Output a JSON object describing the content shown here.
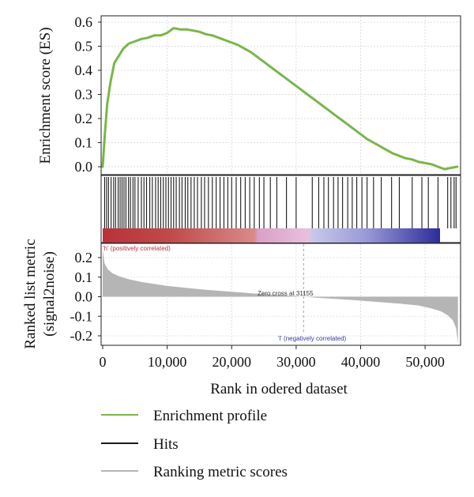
{
  "chart_data": {
    "type": "line",
    "es_panel": {
      "ylabel": "Enrichment score (ES)",
      "yticks": [
        "0.6",
        "0.5",
        "0.4",
        "0.3",
        "0.2",
        "0.1",
        "0.0"
      ],
      "ylim": [
        -0.02,
        0.62
      ],
      "series": [
        {
          "name": "Enrichment profile",
          "color": "#7ab648",
          "points": [
            [
              0,
              0.0
            ],
            [
              300,
              0.12
            ],
            [
              700,
              0.26
            ],
            [
              1200,
              0.35
            ],
            [
              1800,
              0.43
            ],
            [
              2500,
              0.46
            ],
            [
              3200,
              0.49
            ],
            [
              4000,
              0.51
            ],
            [
              5000,
              0.52
            ],
            [
              6000,
              0.53
            ],
            [
              7000,
              0.535
            ],
            [
              8000,
              0.545
            ],
            [
              9000,
              0.545
            ],
            [
              10000,
              0.555
            ],
            [
              11000,
              0.575
            ],
            [
              12000,
              0.57
            ],
            [
              13000,
              0.57
            ],
            [
              14000,
              0.565
            ],
            [
              15000,
              0.56
            ],
            [
              16000,
              0.55
            ],
            [
              17000,
              0.545
            ],
            [
              18000,
              0.535
            ],
            [
              19000,
              0.525
            ],
            [
              20000,
              0.515
            ],
            [
              21000,
              0.505
            ],
            [
              22000,
              0.49
            ],
            [
              23000,
              0.475
            ],
            [
              24000,
              0.455
            ],
            [
              25000,
              0.435
            ],
            [
              26000,
              0.415
            ],
            [
              27000,
              0.395
            ],
            [
              28000,
              0.375
            ],
            [
              29000,
              0.355
            ],
            [
              30000,
              0.335
            ],
            [
              31000,
              0.315
            ],
            [
              32000,
              0.295
            ],
            [
              33000,
              0.275
            ],
            [
              34000,
              0.255
            ],
            [
              35000,
              0.235
            ],
            [
              36000,
              0.215
            ],
            [
              37000,
              0.195
            ],
            [
              38000,
              0.175
            ],
            [
              39000,
              0.155
            ],
            [
              40000,
              0.135
            ],
            [
              41000,
              0.115
            ],
            [
              42000,
              0.1
            ],
            [
              43000,
              0.085
            ],
            [
              44000,
              0.07
            ],
            [
              45000,
              0.055
            ],
            [
              46000,
              0.045
            ],
            [
              47000,
              0.035
            ],
            [
              48000,
              0.03
            ],
            [
              49000,
              0.02
            ],
            [
              50000,
              0.015
            ],
            [
              51000,
              0.01
            ],
            [
              52000,
              0.0
            ],
            [
              53000,
              -0.01
            ],
            [
              54000,
              -0.005
            ],
            [
              55000,
              0.0
            ]
          ]
        }
      ]
    },
    "hits_panel": {
      "name": "Hits",
      "color": "#1a1a1a",
      "positions": [
        300,
        600,
        900,
        1300,
        1700,
        2000,
        2400,
        2700,
        3000,
        3300,
        3600,
        4000,
        4300,
        4700,
        5000,
        5500,
        6000,
        6400,
        6800,
        7300,
        7700,
        8200,
        8600,
        9000,
        9400,
        9800,
        10200,
        10600,
        11000,
        11400,
        11900,
        12300,
        12800,
        13200,
        13700,
        14200,
        14700,
        15300,
        15800,
        16400,
        17000,
        17600,
        18200,
        18800,
        19400,
        20000,
        20700,
        21400,
        22100,
        22800,
        23500,
        24300,
        25000,
        26000,
        27000,
        28500,
        30000,
        32500,
        33500,
        34300,
        35000,
        35800,
        36500,
        37200,
        38000,
        38700,
        39400,
        40200,
        41000,
        42000,
        43200,
        44800,
        46000,
        48000,
        49500,
        50500,
        52000,
        53500,
        54000,
        54500,
        54800
      ]
    },
    "heatmap_band": {
      "labels": [
        "'h' (positively correlated)",
        "'l' (negatively correlated)"
      ],
      "colors": [
        "#b8323a",
        "#d9a0c8",
        "#c8c8ea",
        "#2c2c9a"
      ]
    },
    "metric_panel": {
      "name": "Ranking metric scores",
      "color": "#b5b5b5",
      "ylabel_lines": [
        "Ranked list metric",
        "(signal2noise)"
      ],
      "yticks": [
        "0.2",
        "0.1",
        "0.0",
        "-0.1",
        "-0.2"
      ],
      "ylim": [
        -0.25,
        0.26
      ],
      "points": [
        [
          0,
          0.24
        ],
        [
          300,
          0.17
        ],
        [
          800,
          0.14
        ],
        [
          1500,
          0.12
        ],
        [
          2500,
          0.105
        ],
        [
          4000,
          0.09
        ],
        [
          6000,
          0.075
        ],
        [
          8000,
          0.065
        ],
        [
          10000,
          0.055
        ],
        [
          13000,
          0.045
        ],
        [
          16000,
          0.035
        ],
        [
          20000,
          0.025
        ],
        [
          24000,
          0.015
        ],
        [
          28000,
          0.007
        ],
        [
          31155,
          0.0
        ],
        [
          34000,
          -0.007
        ],
        [
          38000,
          -0.015
        ],
        [
          42000,
          -0.025
        ],
        [
          46000,
          -0.035
        ],
        [
          49000,
          -0.045
        ],
        [
          51000,
          -0.06
        ],
        [
          52500,
          -0.075
        ],
        [
          53500,
          -0.095
        ],
        [
          54300,
          -0.12
        ],
        [
          54800,
          -0.16
        ],
        [
          55100,
          -0.24
        ]
      ],
      "zero_cross_label": "Zero cross at 31155",
      "zero_cross_x": 31155
    },
    "xaxis": {
      "label": "Rank in odered dataset",
      "ticks": [
        0,
        10000,
        20000,
        30000,
        40000,
        50000
      ],
      "tick_labels": [
        "0",
        "10,000",
        "20,000",
        "30,000",
        "40,000",
        "50,000"
      ],
      "xlim": [
        0,
        55500
      ]
    },
    "grid": true,
    "legend": {
      "placement": "bottom",
      "entries": [
        {
          "label": "Enrichment profile",
          "color": "#7ab648"
        },
        {
          "label": "Hits",
          "color": "#1a1a1a"
        },
        {
          "label": "Ranking metric scores",
          "color": "#b5b5b5"
        }
      ]
    }
  }
}
